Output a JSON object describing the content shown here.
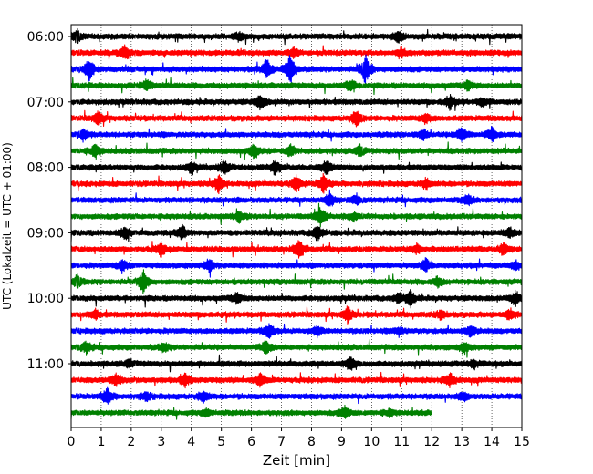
{
  "chart_data": {
    "type": "line",
    "title": "",
    "xlabel": "Zeit  [min]",
    "ylabel": "UTC (Lokalzeit = UTC + 01:00)",
    "xlim": [
      0,
      15
    ],
    "x_ticks": [
      "0",
      "1",
      "2",
      "3",
      "4",
      "5",
      "6",
      "7",
      "8",
      "9",
      "10",
      "11",
      "12",
      "13",
      "14",
      "15"
    ],
    "y_tick_labels": [
      "06:00",
      "07:00",
      "08:00",
      "09:00",
      "10:00",
      "11:00"
    ],
    "grid": "vertical dotted lines at each minute",
    "trace_minutes": 15,
    "last_trace_minutes": 12,
    "traces": [
      {
        "hour_label": "06:00",
        "color": "#000000",
        "events": [
          [
            0.2,
            0.8
          ],
          [
            10.9,
            0.7
          ],
          [
            5.6,
            0.5
          ]
        ]
      },
      {
        "hour_label": "",
        "color": "#ff0000",
        "events": [
          [
            1.8,
            0.9
          ],
          [
            7.4,
            0.6
          ],
          [
            11.0,
            0.5
          ]
        ]
      },
      {
        "hour_label": "",
        "color": "#0000ff",
        "events": [
          [
            0.6,
            1.4
          ],
          [
            6.5,
            1.2
          ],
          [
            7.3,
            1.9
          ],
          [
            9.8,
            1.9
          ]
        ]
      },
      {
        "hour_label": "",
        "color": "#008000",
        "events": [
          [
            2.5,
            0.7
          ],
          [
            9.3,
            0.8
          ],
          [
            13.2,
            0.5
          ]
        ]
      },
      {
        "hour_label": "07:00",
        "color": "#000000",
        "events": [
          [
            6.3,
            0.9
          ],
          [
            12.6,
            0.8
          ],
          [
            13.7,
            0.5
          ]
        ]
      },
      {
        "hour_label": "",
        "color": "#ff0000",
        "events": [
          [
            0.9,
            0.8
          ],
          [
            9.5,
            1.1
          ],
          [
            11.8,
            0.6
          ]
        ]
      },
      {
        "hour_label": "",
        "color": "#0000ff",
        "events": [
          [
            0.4,
            0.7
          ],
          [
            11.7,
            0.7
          ],
          [
            13.0,
            1.0
          ],
          [
            14.0,
            0.8
          ]
        ]
      },
      {
        "hour_label": "",
        "color": "#008000",
        "events": [
          [
            0.8,
            0.8
          ],
          [
            6.1,
            0.9
          ],
          [
            7.3,
            0.7
          ],
          [
            9.6,
            0.6
          ]
        ]
      },
      {
        "hour_label": "08:00",
        "color": "#000000",
        "events": [
          [
            5.1,
            0.8
          ],
          [
            6.8,
            0.8
          ],
          [
            8.5,
            0.9
          ],
          [
            4.0,
            0.6
          ]
        ]
      },
      {
        "hour_label": "",
        "color": "#ff0000",
        "events": [
          [
            4.9,
            1.0
          ],
          [
            7.5,
            1.0
          ],
          [
            8.4,
            1.1
          ],
          [
            11.8,
            0.6
          ]
        ]
      },
      {
        "hour_label": "",
        "color": "#0000ff",
        "events": [
          [
            8.6,
            0.9
          ],
          [
            9.5,
            0.6
          ],
          [
            13.2,
            0.6
          ]
        ]
      },
      {
        "hour_label": "",
        "color": "#008000",
        "events": [
          [
            5.6,
            0.6
          ],
          [
            8.3,
            1.1
          ],
          [
            9.4,
            0.5
          ]
        ]
      },
      {
        "hour_label": "09:00",
        "color": "#000000",
        "events": [
          [
            1.8,
            0.7
          ],
          [
            3.7,
            0.9
          ],
          [
            8.2,
            0.9
          ],
          [
            14.6,
            0.6
          ]
        ]
      },
      {
        "hour_label": "",
        "color": "#ff0000",
        "events": [
          [
            3.0,
            0.8
          ],
          [
            7.6,
            1.2
          ],
          [
            14.4,
            0.8
          ],
          [
            11.5,
            0.5
          ]
        ]
      },
      {
        "hour_label": "",
        "color": "#0000ff",
        "events": [
          [
            1.7,
            0.8
          ],
          [
            4.6,
            0.8
          ],
          [
            11.8,
            0.8
          ],
          [
            14.8,
            0.6
          ]
        ]
      },
      {
        "hour_label": "",
        "color": "#008000",
        "events": [
          [
            0.2,
            0.7
          ],
          [
            2.4,
            1.3
          ],
          [
            12.2,
            0.6
          ]
        ]
      },
      {
        "hour_label": "10:00",
        "color": "#000000",
        "events": [
          [
            11.3,
            0.9
          ],
          [
            14.8,
            0.9
          ],
          [
            5.5,
            0.6
          ],
          [
            10.9,
            0.6
          ]
        ]
      },
      {
        "hour_label": "",
        "color": "#ff0000",
        "events": [
          [
            0.8,
            0.5
          ],
          [
            9.2,
            0.9
          ],
          [
            12.3,
            0.5
          ],
          [
            14.6,
            0.6
          ]
        ]
      },
      {
        "hour_label": "",
        "color": "#0000ff",
        "events": [
          [
            6.6,
            0.9
          ],
          [
            8.2,
            0.6
          ],
          [
            13.3,
            0.8
          ],
          [
            10.9,
            0.5
          ]
        ]
      },
      {
        "hour_label": "",
        "color": "#008000",
        "events": [
          [
            0.5,
            0.7
          ],
          [
            6.5,
            0.8
          ],
          [
            13.1,
            0.6
          ],
          [
            3.1,
            0.5
          ]
        ]
      },
      {
        "hour_label": "11:00",
        "color": "#000000",
        "events": [
          [
            9.3,
            1.0
          ],
          [
            1.9,
            0.4
          ],
          [
            13.4,
            0.5
          ]
        ]
      },
      {
        "hour_label": "",
        "color": "#ff0000",
        "events": [
          [
            1.5,
            0.7
          ],
          [
            3.8,
            0.8
          ],
          [
            6.3,
            0.8
          ],
          [
            12.6,
            0.8
          ]
        ]
      },
      {
        "hour_label": "",
        "color": "#0000ff",
        "events": [
          [
            1.2,
            1.0
          ],
          [
            4.4,
            0.7
          ],
          [
            13.1,
            0.5
          ],
          [
            2.5,
            0.5
          ]
        ]
      },
      {
        "hour_label": "",
        "color": "#008000",
        "events": [
          [
            9.1,
            0.7
          ],
          [
            10.6,
            0.4
          ],
          [
            4.5,
            0.4
          ]
        ]
      }
    ]
  }
}
